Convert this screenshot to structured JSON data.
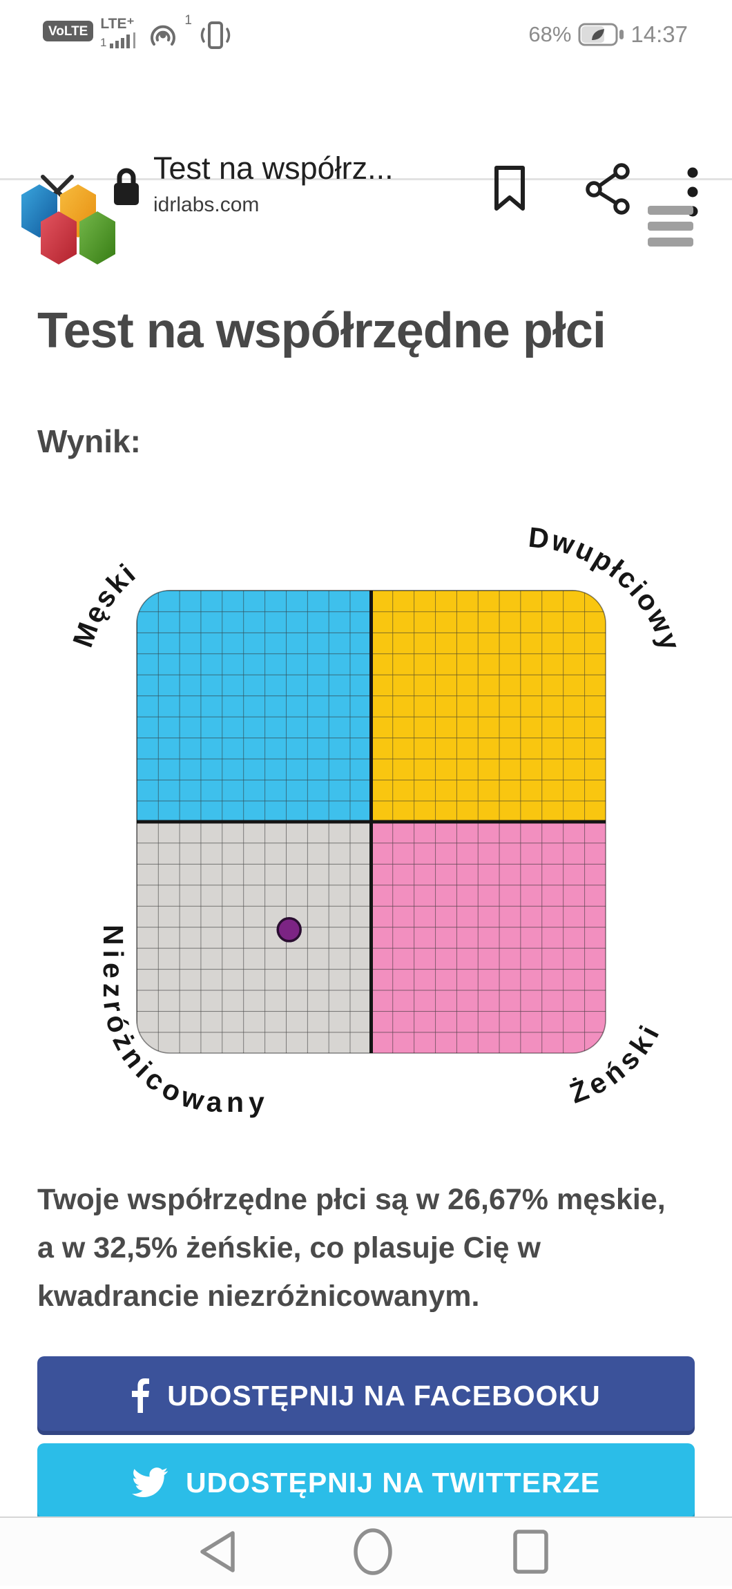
{
  "status_bar": {
    "volte": "VoLTE",
    "network": "LTE⁺",
    "signal_sim": "1",
    "hotspot_sup": "1",
    "battery_percent": "68%",
    "time": "14:37"
  },
  "browser": {
    "tab_title": "Test na współrz...",
    "url": "idrlabs.com"
  },
  "page": {
    "heading": "Test na współrzędne płci",
    "result_label": "Wynik:",
    "result_text": "Twoje współrzędne płci są w 26,67% męskie, a w 32,5% żeńskie, co plasuje Cię w kwadrancie niezróżnicowanym."
  },
  "chart_data": {
    "type": "scatter",
    "description": "Gender coordinates quadrant grid with one result point",
    "axis_range": [
      0,
      100
    ],
    "grid": true,
    "quadrants": [
      {
        "id": "top-left",
        "label": "Męski",
        "color": "#3EC0EC"
      },
      {
        "id": "top-right",
        "label": "Dwupłciowy",
        "color": "#F9C610"
      },
      {
        "id": "bottom-left",
        "label": "Niezróżnicowany",
        "color": "#D7D5D2"
      },
      {
        "id": "bottom-right",
        "label": "Żeński",
        "color": "#F28FBF"
      }
    ],
    "point": {
      "masculine_pct": 26.67,
      "feminine_pct": 32.5,
      "color": "#7C2484",
      "outline": "#2A0E31"
    }
  },
  "buttons": {
    "facebook_label": "UDOSTĘPNIJ NA FACEBOOKU",
    "facebook_color": "#3B529A",
    "twitter_label": "UDOSTĘPNIJ NA TWITTERZE",
    "twitter_color": "#2BBDE8"
  }
}
